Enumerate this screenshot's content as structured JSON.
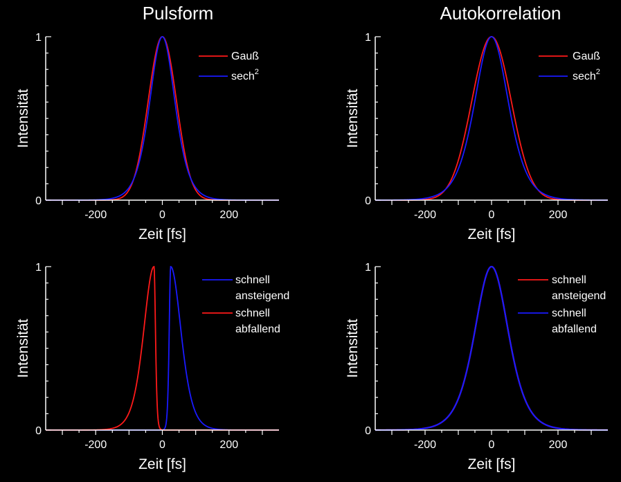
{
  "titles": {
    "left": "Pulsform",
    "right": "Autokorrelation"
  },
  "colors": {
    "background": "#000000",
    "axis": "#ffffff",
    "red": "#ff1a1a",
    "blue": "#1a1aff"
  },
  "chart_data": [
    {
      "type": "line",
      "panel": "top-left",
      "xlabel": "Zeit [fs]",
      "ylabel": "Intensität",
      "xlim": [
        -350,
        350
      ],
      "ylim": [
        0,
        1
      ],
      "xticks": [
        "-200",
        "0",
        "200"
      ],
      "xtick_values": [
        -200,
        0,
        200
      ],
      "yticks": [
        "0",
        "1"
      ],
      "ytick_values": [
        0,
        1
      ],
      "legend_position": "top-right",
      "series": [
        {
          "name": "Gauß",
          "color": "#ff1a1a",
          "shape": "gaussian",
          "center": 0,
          "fwhm": 100
        },
        {
          "name": "sech²",
          "label_base": "sech",
          "label_sup": "2",
          "color": "#1a1aff",
          "shape": "sech2",
          "center": 0,
          "fwhm": 90
        }
      ]
    },
    {
      "type": "line",
      "panel": "top-right",
      "xlabel": "Zeit [fs]",
      "ylabel": "Intensität",
      "xlim": [
        -350,
        350
      ],
      "ylim": [
        0,
        1
      ],
      "xticks": [
        "-200",
        "0",
        "200"
      ],
      "xtick_values": [
        -200,
        0,
        200
      ],
      "yticks": [
        "0",
        "1"
      ],
      "ytick_values": [
        0,
        1
      ],
      "legend_position": "top-right",
      "series": [
        {
          "name": "Gauß",
          "color": "#ff1a1a",
          "shape": "gaussian",
          "center": 0,
          "fwhm": 140
        },
        {
          "name": "sech²",
          "label_base": "sech",
          "label_sup": "2",
          "color": "#1a1aff",
          "shape": "sech2",
          "center": 0,
          "fwhm": 120
        }
      ]
    },
    {
      "type": "line",
      "panel": "bottom-left",
      "xlabel": "Zeit [fs]",
      "ylabel": "Intensität",
      "xlim": [
        -350,
        350
      ],
      "ylim": [
        0,
        1
      ],
      "xticks": [
        "-200",
        "0",
        "200"
      ],
      "xtick_values": [
        -200,
        0,
        200
      ],
      "yticks": [
        "0",
        "1"
      ],
      "ytick_values": [
        0,
        1
      ],
      "legend_position": "top-right",
      "series": [
        {
          "name": "schnell ansteigend",
          "label_lines": [
            "schnell",
            "ansteigend"
          ],
          "color": "#1a1aff",
          "shape": "asym",
          "center": 25,
          "rise": 6,
          "fall": 42
        },
        {
          "name": "schnell abfallend",
          "label_lines": [
            "schnell",
            "abfallend"
          ],
          "color": "#ff1a1a",
          "shape": "asym",
          "center": -25,
          "rise": 42,
          "fall": 6
        }
      ]
    },
    {
      "type": "line",
      "panel": "bottom-right",
      "xlabel": "Zeit [fs]",
      "ylabel": "Intensität",
      "xlim": [
        -350,
        350
      ],
      "ylim": [
        0,
        1
      ],
      "xticks": [
        "-200",
        "0",
        "200"
      ],
      "xtick_values": [
        -200,
        0,
        200
      ],
      "yticks": [
        "0",
        "1"
      ],
      "ytick_values": [
        0,
        1
      ],
      "legend_position": "top-right",
      "series": [
        {
          "name": "schnell ansteigend",
          "label_lines": [
            "schnell",
            "ansteigend"
          ],
          "color": "#ff1a1a",
          "shape": "sech2",
          "center": 0,
          "fwhm": 120
        },
        {
          "name": "schnell abfallend",
          "label_lines": [
            "schnell",
            "abfallend"
          ],
          "color": "#1a1aff",
          "shape": "sech2",
          "center": 0,
          "fwhm": 120
        }
      ]
    }
  ]
}
